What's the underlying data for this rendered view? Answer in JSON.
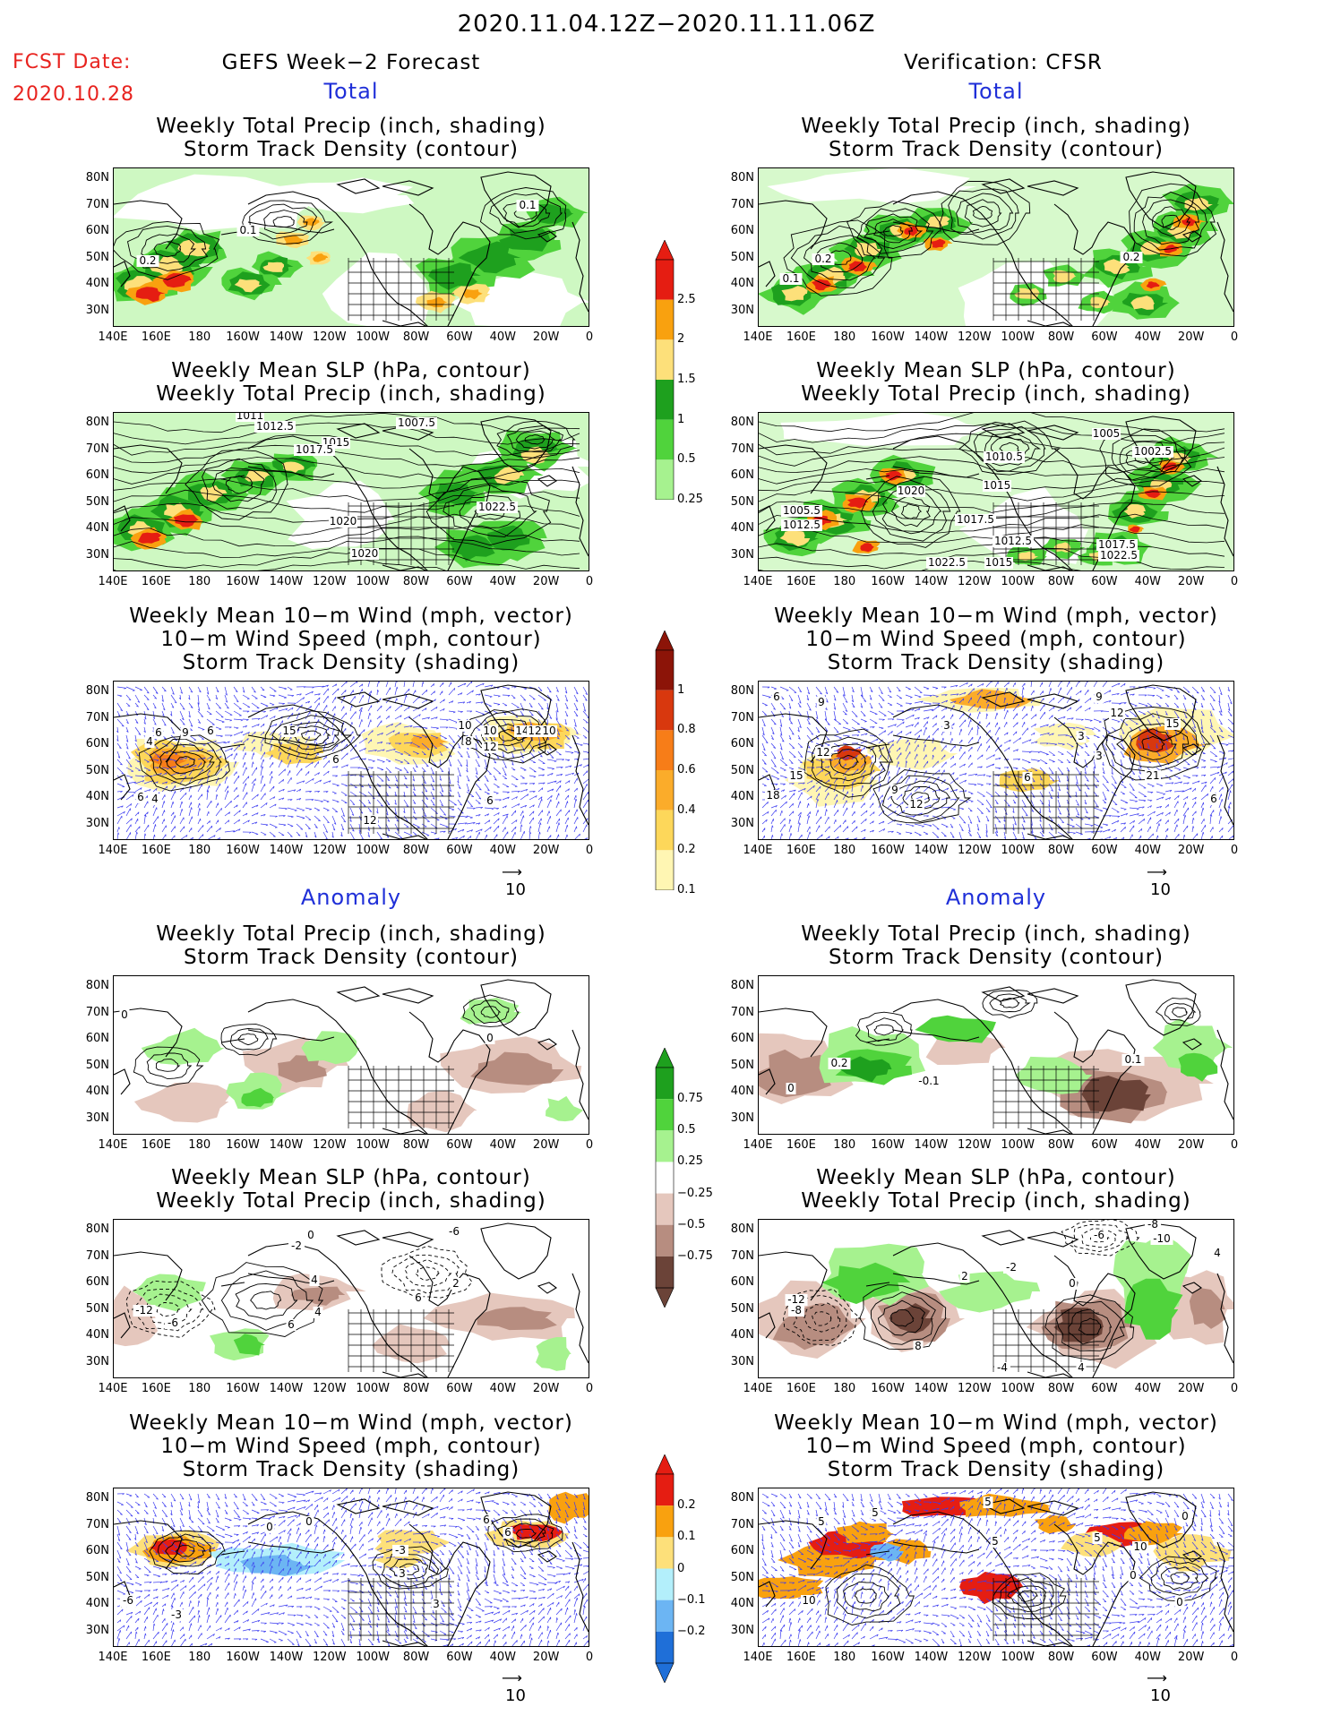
{
  "header": {
    "title": "2020.11.04.12Z−2020.11.11.06Z",
    "fcst_label": "FCST Date:",
    "fcst_date": "2020.10.28",
    "left_title": "GEFS Week−2 Forecast",
    "right_title": "Verification: CFSR"
  },
  "sections": {
    "total": "Total",
    "anomaly": "Anomaly"
  },
  "panel_titles": {
    "precip_storm": [
      "Weekly Total Precip (inch, shading)",
      "Storm Track Density (contour)"
    ],
    "slp_precip": [
      "Weekly Mean SLP (hPa, contour)",
      "Weekly Total Precip (inch, shading)"
    ],
    "wind": [
      "Weekly Mean 10−m Wind (mph, vector)",
      "10−m Wind Speed (mph, contour)",
      "Storm Track Density (shading)"
    ]
  },
  "axes": {
    "lat": [
      "80N",
      "70N",
      "60N",
      "50N",
      "40N",
      "30N"
    ],
    "lon": [
      "140E",
      "160E",
      "180",
      "160W",
      "140W",
      "120W",
      "100W",
      "80W",
      "60W",
      "40W",
      "20W",
      "0"
    ]
  },
  "vector_ref": "10",
  "colorbars": {
    "precip_total": [
      "2.5",
      "2",
      "1.5",
      "1",
      "0.5",
      "0.25"
    ],
    "storm_total": [
      "1",
      "0.8",
      "0.6",
      "0.4",
      "0.2",
      "0.1"
    ],
    "precip_anom": [
      "0.75",
      "0.5",
      "0.25",
      "−0.25",
      "−0.5",
      "−0.75"
    ],
    "storm_anom": [
      "0.2",
      "0.1",
      "0",
      "−0.1",
      "−0.2"
    ]
  },
  "colors": {
    "precip": [
      "#a6f28f",
      "#50d33c",
      "#1ea01e",
      "#fde07a",
      "#f9a10f",
      "#e51d12"
    ],
    "storm": [
      "#fff6b3",
      "#fdd75a",
      "#fbac2a",
      "#f77d18",
      "#d8380e",
      "#8c1408"
    ],
    "precip_anom_pos": [
      "#a6f28f",
      "#50d33c",
      "#1ea01e"
    ],
    "precip_anom_neg": [
      "#e5c7bd",
      "#b78d80",
      "#6b4338"
    ],
    "storm_anom": [
      "#1f6fd8",
      "#6cb5f3",
      "#b3effb",
      "#fde07a",
      "#f9a10f",
      "#e51d12"
    ],
    "vector": "#3b3bf0",
    "header_red": "#e8231f",
    "header_blue": "#1f2fd8"
  },
  "contour_labels": {
    "p1_left": [
      "0.1",
      "0.2",
      "0.1"
    ],
    "p1_right": [
      "0.2",
      "0.1",
      "0.2"
    ],
    "p2_left": [
      "1011",
      "1012.5",
      "1007.5",
      "1015",
      "1017.5",
      "1020",
      "1022.5",
      "1020"
    ],
    "p2_right": [
      "1005",
      "1010.5",
      "1002.5",
      "1020",
      "1015",
      "1005.5",
      "1012.5",
      "1017.5",
      "1017.5",
      "1012.5",
      "1022.5",
      "1015",
      "1022.5"
    ],
    "p3_left": [
      "6",
      "4",
      "9",
      "6",
      "15",
      "6",
      "10",
      "8",
      "10",
      "12",
      "14",
      "12",
      "10",
      "6",
      "4",
      "12",
      "6"
    ],
    "p3_right": [
      "6",
      "9",
      "9",
      "12",
      "15",
      "12",
      "3",
      "3",
      "15",
      "21",
      "18",
      "9",
      "12",
      "6",
      "3",
      "6"
    ],
    "p4_left": [
      "0",
      "0"
    ],
    "p4_right": [
      "0.2",
      "0",
      "-0.1",
      "0.1"
    ],
    "p5_left": [
      "0",
      "-2",
      "-6",
      "-12",
      "-6",
      "6",
      "4",
      "2",
      "4",
      "6"
    ],
    "p5_right": [
      "-8",
      "-10",
      "-6",
      "-2",
      "0",
      "-12",
      "-8",
      "2",
      "8",
      "4",
      "-4",
      "4"
    ],
    "p6_left": [
      "0",
      "0",
      "-3",
      "6",
      "3",
      "3",
      "6",
      "-6",
      "-3"
    ],
    "p6_right": [
      "5",
      "5",
      "5",
      "5",
      "0",
      "5",
      "10",
      "0",
      "10",
      "0"
    ]
  }
}
